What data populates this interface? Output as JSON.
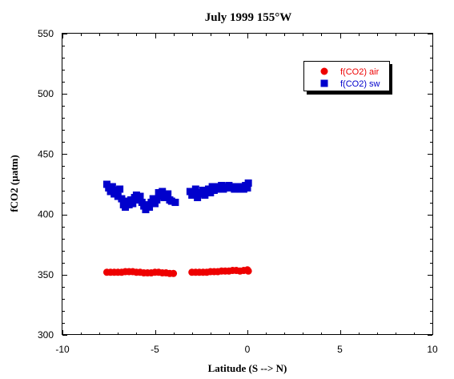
{
  "chart_data": {
    "type": "scatter",
    "title": "July 1999 155°W",
    "xlabel": "Latitude (S --> N)",
    "ylabel": "fCO2 (µatm)",
    "xlim": [
      -10,
      10
    ],
    "ylim": [
      300,
      550
    ],
    "xticks": [
      "-10",
      "-5",
      "0",
      "5",
      "10"
    ],
    "yticks": [
      "300",
      "350",
      "400",
      "450",
      "500",
      "550"
    ],
    "grid": false,
    "legend_position": "top-right",
    "series": [
      {
        "name": "f(CO2) air",
        "marker": "circle",
        "color": "#ee0000",
        "points": [
          [
            -7.6,
            352
          ],
          [
            -7.4,
            352
          ],
          [
            -7.2,
            352
          ],
          [
            -7.0,
            352
          ],
          [
            -6.8,
            352
          ],
          [
            -6.6,
            352.5
          ],
          [
            -6.4,
            352.5
          ],
          [
            -6.2,
            352.5
          ],
          [
            -6.0,
            352
          ],
          [
            -5.8,
            352
          ],
          [
            -5.6,
            351.5
          ],
          [
            -5.4,
            351.5
          ],
          [
            -5.2,
            351.5
          ],
          [
            -5.0,
            352
          ],
          [
            -4.8,
            352
          ],
          [
            -4.6,
            351.5
          ],
          [
            -4.4,
            351.5
          ],
          [
            -4.2,
            351
          ],
          [
            -4.0,
            351
          ],
          [
            -3.0,
            352
          ],
          [
            -2.8,
            352
          ],
          [
            -2.6,
            352
          ],
          [
            -2.4,
            352
          ],
          [
            -2.2,
            352
          ],
          [
            -2.0,
            352.5
          ],
          [
            -1.8,
            352.5
          ],
          [
            -1.6,
            352.5
          ],
          [
            -1.4,
            353
          ],
          [
            -1.2,
            353
          ],
          [
            -1.0,
            353
          ],
          [
            -0.8,
            353.5
          ],
          [
            -0.6,
            353.5
          ],
          [
            -0.4,
            353
          ],
          [
            -0.2,
            353.5
          ],
          [
            0.0,
            354
          ],
          [
            0.05,
            353
          ]
        ]
      },
      {
        "name": "f(CO2) sw",
        "marker": "square",
        "color": "#0000cc",
        "points": [
          [
            -7.6,
            425
          ],
          [
            -7.5,
            422
          ],
          [
            -7.4,
            419
          ],
          [
            -7.3,
            423
          ],
          [
            -7.2,
            417
          ],
          [
            -7.1,
            420
          ],
          [
            -7.0,
            415
          ],
          [
            -6.9,
            421
          ],
          [
            -6.8,
            413
          ],
          [
            -6.7,
            408
          ],
          [
            -6.6,
            406
          ],
          [
            -6.5,
            411
          ],
          [
            -6.4,
            408
          ],
          [
            -6.3,
            412
          ],
          [
            -6.2,
            409
          ],
          [
            -6.1,
            414
          ],
          [
            -6.0,
            416
          ],
          [
            -5.9,
            412
          ],
          [
            -5.8,
            415
          ],
          [
            -5.7,
            410
          ],
          [
            -5.6,
            407
          ],
          [
            -5.5,
            404
          ],
          [
            -5.4,
            408
          ],
          [
            -5.3,
            406
          ],
          [
            -5.2,
            410
          ],
          [
            -5.1,
            413
          ],
          [
            -5.0,
            409
          ],
          [
            -4.9,
            412
          ],
          [
            -4.8,
            418
          ],
          [
            -4.7,
            415
          ],
          [
            -4.6,
            419
          ],
          [
            -4.5,
            414
          ],
          [
            -4.4,
            416
          ],
          [
            -4.3,
            417
          ],
          [
            -4.2,
            412
          ],
          [
            -4.1,
            411
          ],
          [
            -3.9,
            410
          ],
          [
            -3.1,
            419
          ],
          [
            -3.0,
            416
          ],
          [
            -2.9,
            418
          ],
          [
            -2.8,
            421
          ],
          [
            -2.7,
            414
          ],
          [
            -2.6,
            418
          ],
          [
            -2.5,
            417
          ],
          [
            -2.4,
            420
          ],
          [
            -2.3,
            416
          ],
          [
            -2.2,
            419
          ],
          [
            -2.1,
            421
          ],
          [
            -2.0,
            418
          ],
          [
            -1.9,
            423
          ],
          [
            -1.8,
            420
          ],
          [
            -1.7,
            423
          ],
          [
            -1.6,
            421
          ],
          [
            -1.5,
            422
          ],
          [
            -1.4,
            424
          ],
          [
            -1.3,
            421
          ],
          [
            -1.2,
            423
          ],
          [
            -1.1,
            422
          ],
          [
            -1.0,
            424
          ],
          [
            -0.9,
            422
          ],
          [
            -0.8,
            423
          ],
          [
            -0.7,
            421
          ],
          [
            -0.6,
            422
          ],
          [
            -0.5,
            423
          ],
          [
            -0.4,
            421
          ],
          [
            -0.3,
            423
          ],
          [
            -0.2,
            421
          ],
          [
            -0.1,
            424
          ],
          [
            0.0,
            422
          ],
          [
            0.05,
            426
          ]
        ]
      }
    ]
  }
}
